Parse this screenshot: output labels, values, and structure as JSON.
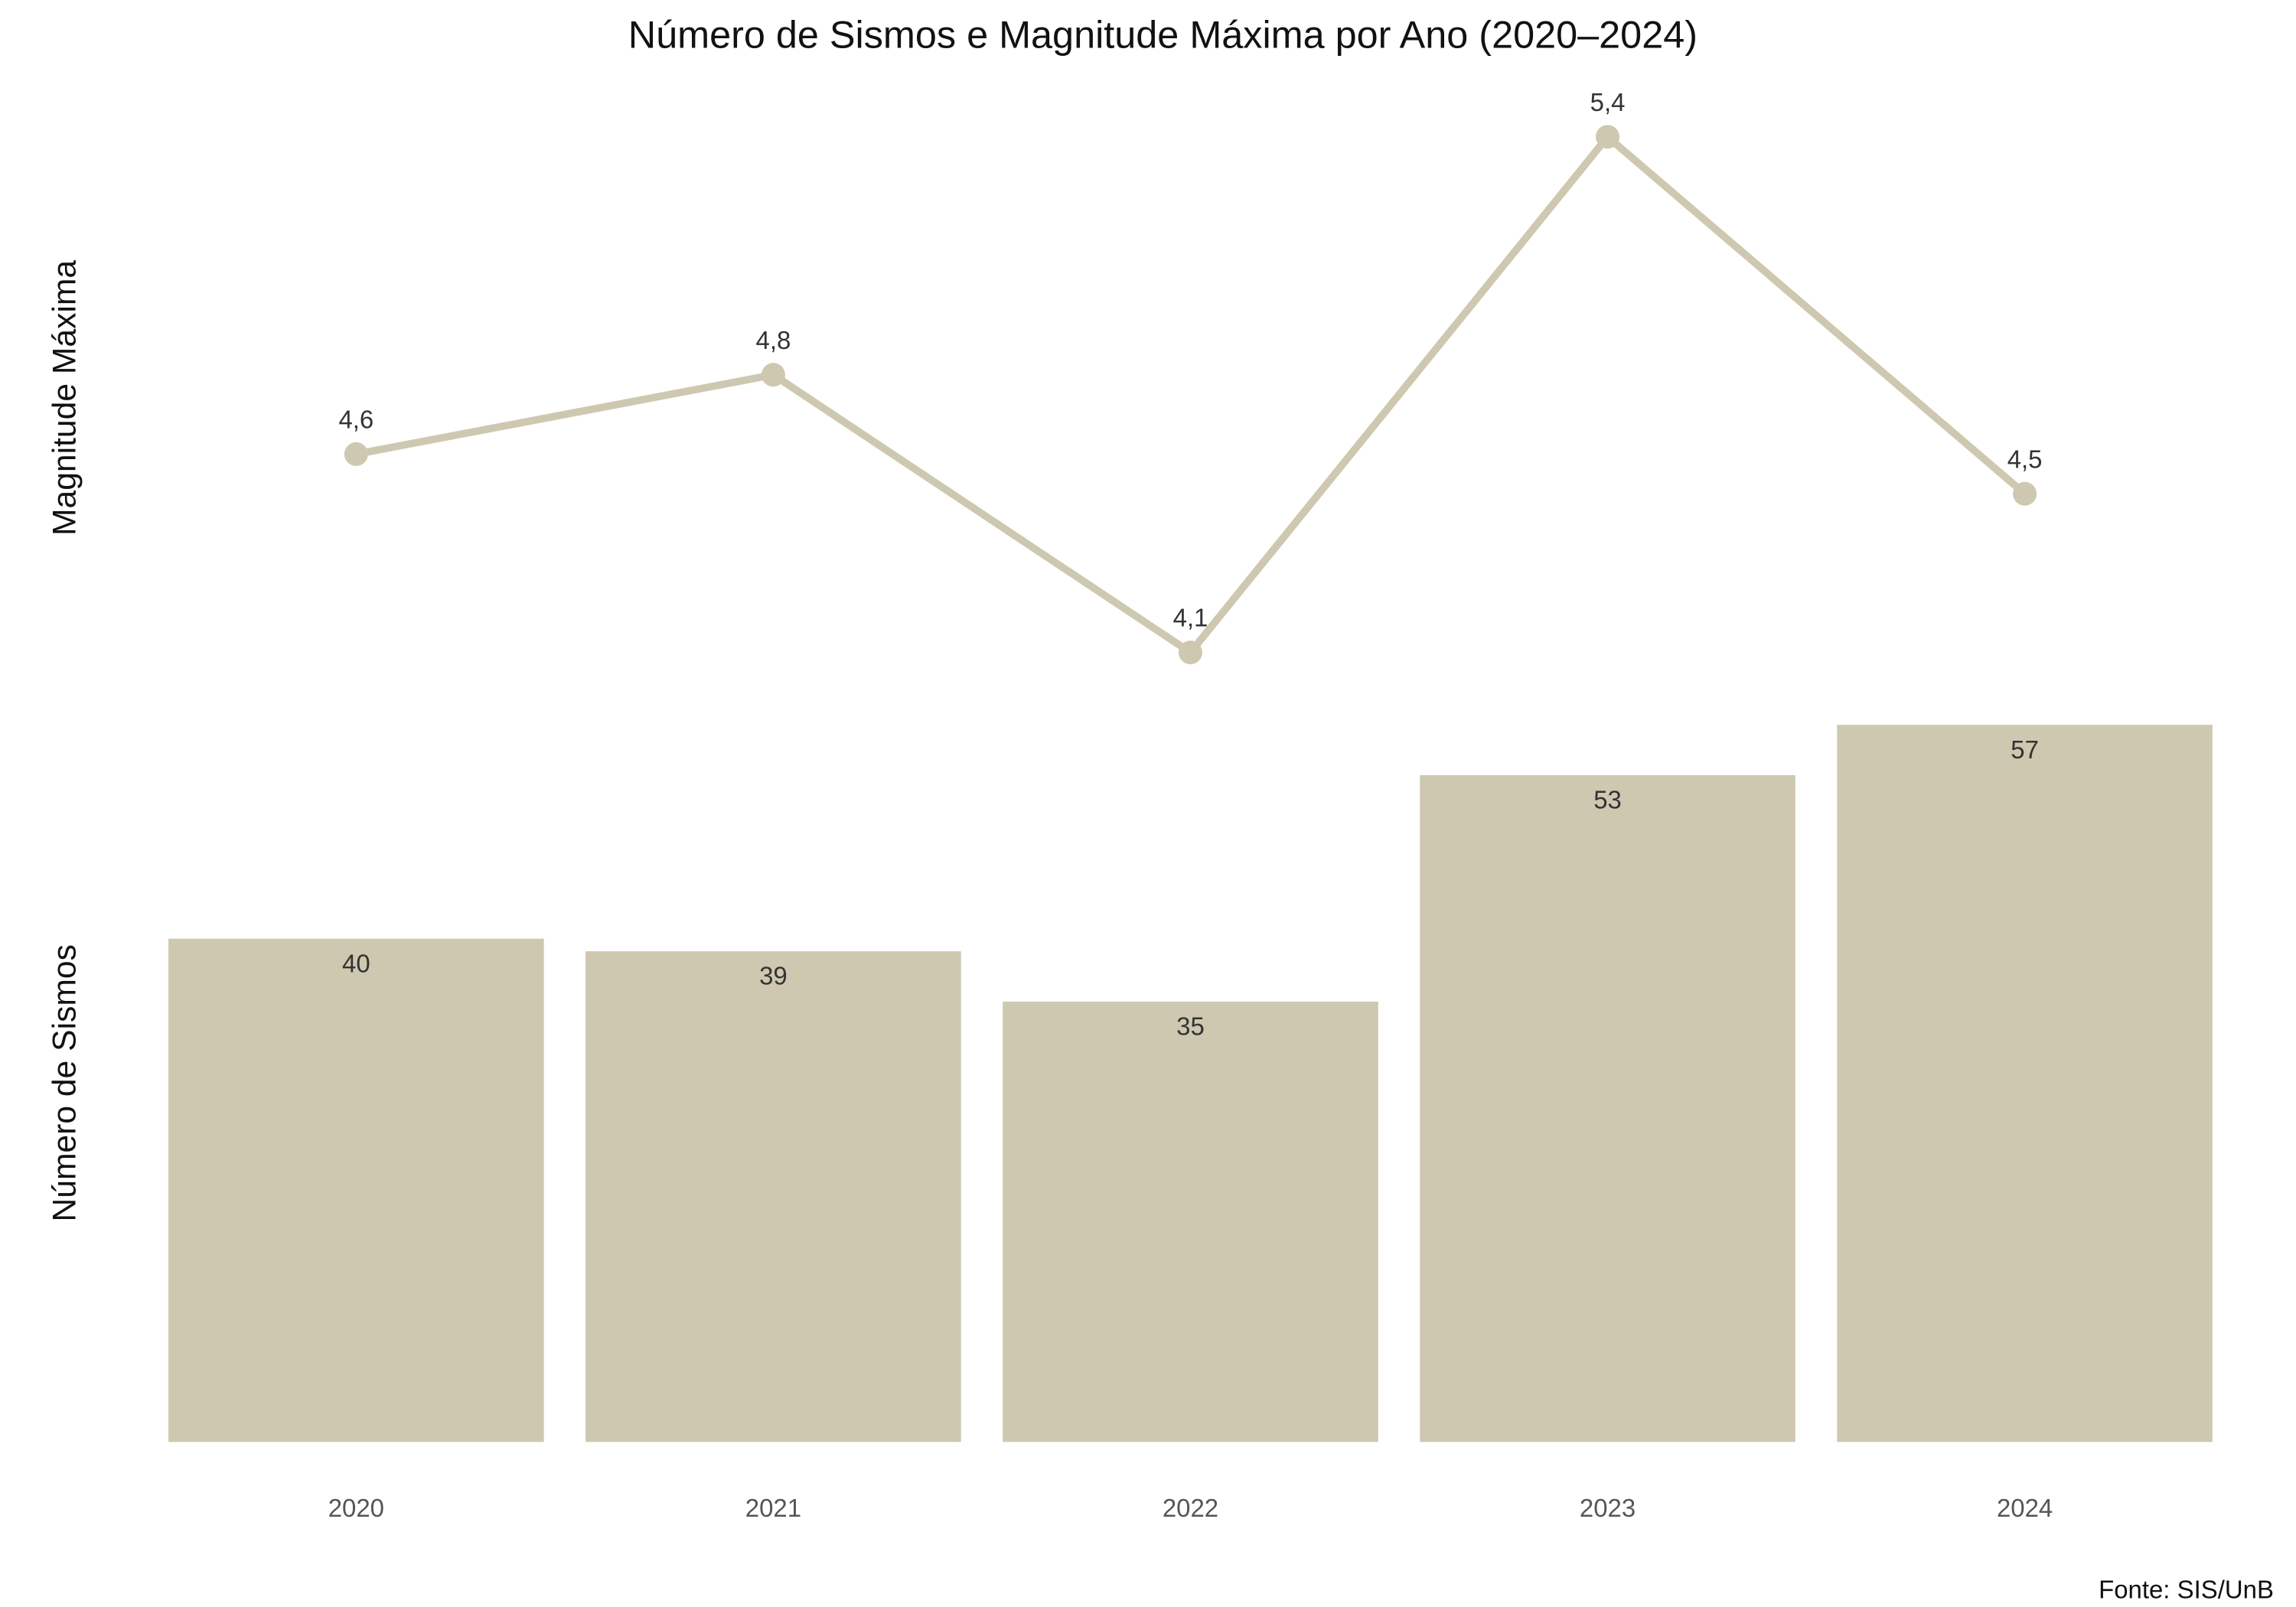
{
  "chart_data": [
    {
      "type": "line",
      "title": "Número de Sismos e Magnitude Máxima por Ano (2020–2024)",
      "ylabel": "Magnitude Máxima",
      "categories": [
        "2020",
        "2021",
        "2022",
        "2023",
        "2024"
      ],
      "values": [
        4.6,
        4.8,
        4.1,
        5.4,
        4.5
      ],
      "value_labels": [
        "4,6",
        "4,8",
        "4,1",
        "5,4",
        "4,5"
      ],
      "color": "#cec8b0",
      "ylim": [
        4.05,
        5.45
      ]
    },
    {
      "type": "bar",
      "ylabel": "Número de Sismos",
      "categories": [
        "2020",
        "2021",
        "2022",
        "2023",
        "2024"
      ],
      "values": [
        40,
        39,
        35,
        53,
        57
      ],
      "color": "#cec8b0",
      "ylim": [
        0,
        60
      ],
      "source": "Fonte: SIS/UnB"
    }
  ]
}
